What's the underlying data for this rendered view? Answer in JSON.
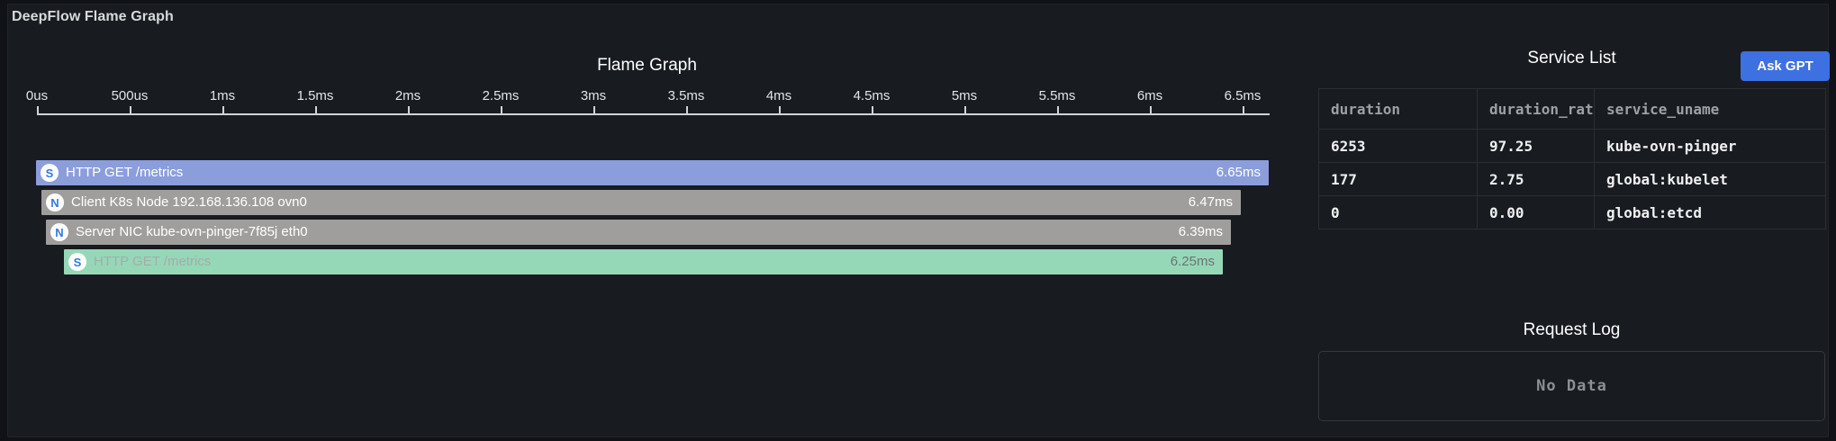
{
  "panel": {
    "title": "DeepFlow Flame Graph"
  },
  "flame": {
    "title": "Flame Graph",
    "axis_ticks": [
      "0us",
      "500us",
      "1ms",
      "1.5ms",
      "2ms",
      "2.5ms",
      "3ms",
      "3.5ms",
      "4ms",
      "4.5ms",
      "5ms",
      "5.5ms",
      "6ms",
      "6.5ms"
    ],
    "icon_letter_color": "#3377e6",
    "bars": [
      {
        "icon_letter": "S",
        "label": "HTTP GET /metrics",
        "duration_label": "6.65ms",
        "duration_ms": 6.65,
        "level": 0,
        "color": "#8b9edb",
        "label_color": "#ffffff",
        "duration_color": "#ffffff"
      },
      {
        "icon_letter": "N",
        "label": "Client K8s Node 192.168.136.108 ovn0",
        "duration_label": "6.47ms",
        "duration_ms": 6.47,
        "level": 1,
        "color": "#a09e9c",
        "label_color": "#ffffff",
        "duration_color": "#ffffff"
      },
      {
        "icon_letter": "N",
        "label": "Server NIC kube-ovn-pinger-7f85j eth0",
        "duration_label": "6.39ms",
        "duration_ms": 6.39,
        "level": 2,
        "color": "#a09e9c",
        "label_color": "#ffffff",
        "duration_color": "#ffffff"
      },
      {
        "icon_letter": "S",
        "label": "HTTP GET /metrics",
        "duration_label": "6.25ms",
        "duration_ms": 6.25,
        "level": 3,
        "color": "#95d8b8",
        "label_color": "#a6aca9",
        "duration_color": "#6e7375"
      }
    ]
  },
  "service_list": {
    "title": "Service List",
    "ask_gpt_button": "Ask GPT",
    "ask_gpt_color": "#3d70e0",
    "columns": [
      "duration",
      "duration_ratio",
      "service_uname"
    ],
    "rows": [
      [
        "6253",
        "97.25",
        "kube-ovn-pinger"
      ],
      [
        "177",
        "2.75",
        "global:kubelet"
      ],
      [
        "0",
        "0.00",
        "global:etcd"
      ]
    ]
  },
  "request_log": {
    "title": "Request Log",
    "empty_text": "No Data"
  }
}
